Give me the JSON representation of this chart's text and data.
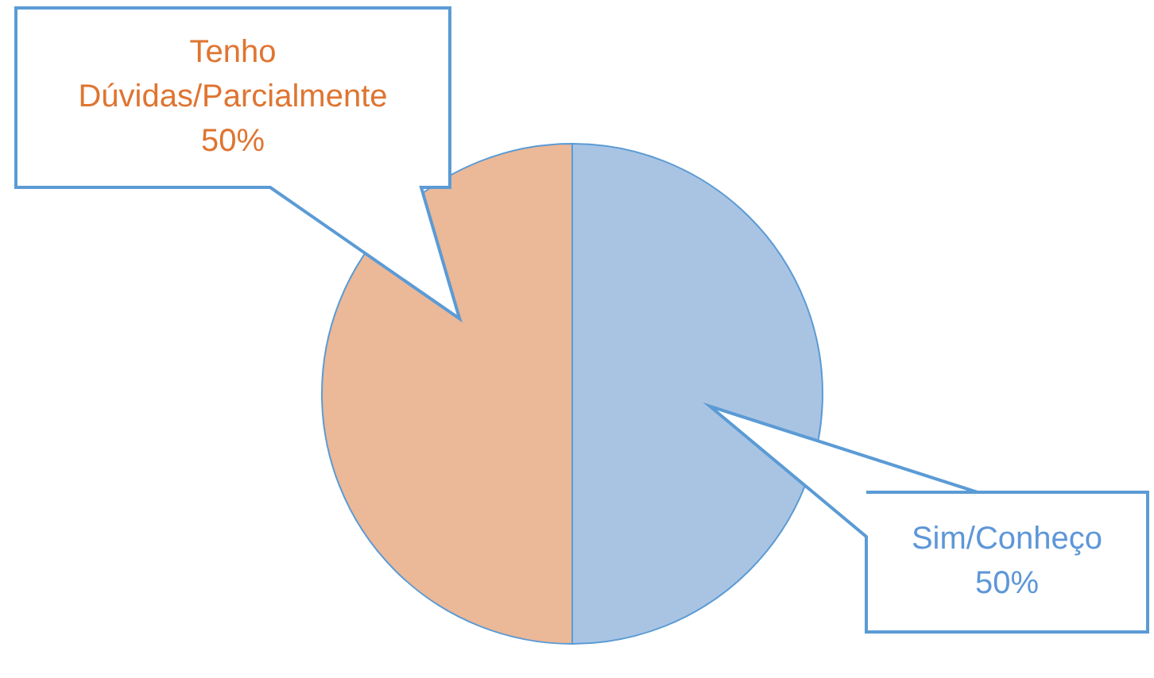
{
  "chart_data": {
    "type": "pie",
    "categories": [
      "Sim/Conheço",
      "Tenho Dúvidas/Parcialmente"
    ],
    "values": [
      50,
      50
    ],
    "colors": [
      "#a9c4e3",
      "#ebb898"
    ],
    "value_labels": [
      "50%",
      "50%"
    ],
    "legend": false
  }
}
